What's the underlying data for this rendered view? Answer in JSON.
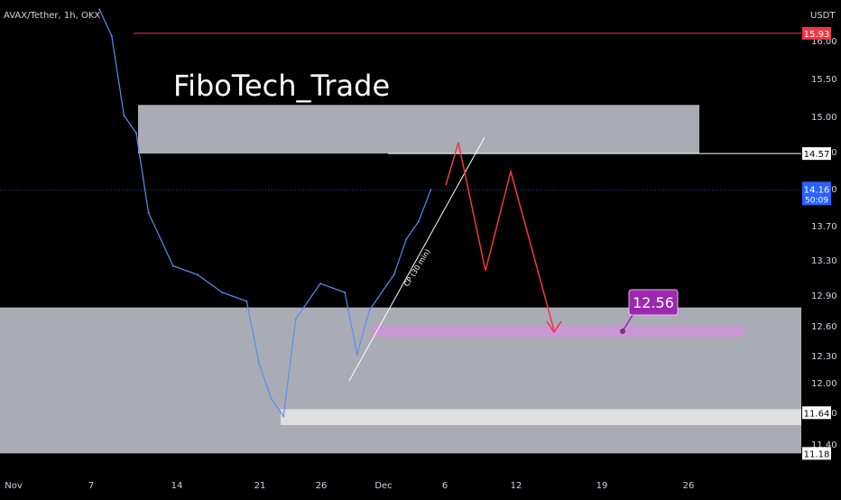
{
  "chart_data": {
    "type": "line",
    "symbol": "AVAX/Tether, 1h, OKX",
    "currency": "USDT",
    "watermark": "FiboTech_Trade",
    "y_ticks": [
      "16.00",
      "15.50",
      "15.00",
      "14.50",
      "14.10",
      "13.70",
      "13.30",
      "12.90",
      "12.60",
      "12.30",
      "12.00",
      "11.70",
      "11.40"
    ],
    "x_ticks": [
      "Nov",
      "7",
      "14",
      "21",
      "26",
      "Dec",
      "6",
      "12",
      "19",
      "26"
    ],
    "price_tags": [
      {
        "label": "15.93",
        "value": 15.93,
        "color": "#f23645",
        "text_color": "#ffffff"
      },
      {
        "label": "14.57",
        "value": 14.57,
        "color": "#ffffff",
        "text_color": "#000000"
      },
      {
        "label": "11.64",
        "value": 11.64,
        "color": "#ffffff",
        "text_color": "#000000"
      },
      {
        "label": "11.18",
        "value": 11.18,
        "color": "#ffffff",
        "text_color": "#000000"
      }
    ],
    "current_price": {
      "label": "14.16",
      "countdown": "50:09",
      "value": 14.16,
      "color": "#2962ff"
    },
    "annotation": {
      "label": "12.56",
      "value": 12.56,
      "color": "#9c27b0"
    },
    "trendline_label": "CP (30 min)",
    "zones": [
      {
        "name": "supply-zone",
        "from": 14.57,
        "to": 15.12,
        "color": "#b2b5be"
      },
      {
        "name": "demand-zone",
        "from": 11.18,
        "to": 12.83,
        "color": "#b2b5be"
      },
      {
        "name": "target-zone",
        "from": 12.5,
        "to": 12.62,
        "color": "#ce93d8"
      },
      {
        "name": "low-zone",
        "from": 11.5,
        "to": 11.68,
        "color": "#e0e0e0"
      }
    ],
    "series": [
      {
        "x": [
          "Nov 8",
          "Nov 9",
          "Nov 10",
          "Nov 11",
          "Nov 12",
          "Nov 14",
          "Nov 16",
          "Nov 18",
          "Nov 20",
          "Nov 21",
          "Nov 22",
          "Nov 23",
          "Nov 24",
          "Nov 26",
          "Nov 28",
          "Nov 29",
          "Nov 30",
          "Dec 2",
          "Dec 3",
          "Dec 4",
          "Dec 5"
        ],
        "values": [
          16.2,
          15.9,
          15.0,
          14.8,
          13.9,
          13.3,
          13.2,
          13.0,
          12.9,
          12.2,
          11.8,
          11.6,
          12.7,
          13.1,
          13.0,
          12.3,
          12.8,
          13.2,
          13.6,
          13.8,
          14.16
        ]
      }
    ]
  }
}
